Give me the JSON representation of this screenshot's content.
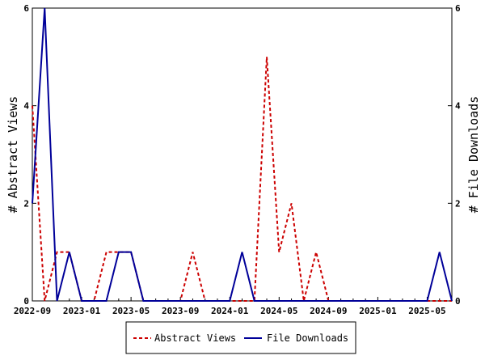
{
  "chart_data": {
    "type": "line",
    "x": [
      "2022-09",
      "2022-10",
      "2022-11",
      "2022-12",
      "2023-01",
      "2023-02",
      "2023-03",
      "2023-04",
      "2023-05",
      "2023-06",
      "2023-07",
      "2023-08",
      "2023-09",
      "2023-10",
      "2023-11",
      "2023-12",
      "2024-01",
      "2024-02",
      "2024-03",
      "2024-04",
      "2024-05",
      "2024-06",
      "2024-07",
      "2024-08",
      "2024-09",
      "2024-10",
      "2024-11",
      "2024-12",
      "2025-01",
      "2025-02",
      "2025-03",
      "2025-04",
      "2025-05",
      "2025-06",
      "2025-07"
    ],
    "x_tick_labels": [
      "2022-09",
      "2023-01",
      "2023-05",
      "2023-09",
      "2024-01",
      "2024-05",
      "2024-09",
      "2025-01",
      "2025-05"
    ],
    "series": [
      {
        "name": "Abstract Views",
        "axis": "left",
        "color": "#cc0000",
        "style": "dashed",
        "values": [
          4,
          0,
          1,
          1,
          0,
          0,
          1,
          1,
          1,
          0,
          0,
          0,
          0,
          1,
          0,
          0,
          0,
          0,
          0,
          5,
          1,
          2,
          0,
          1,
          0,
          0,
          0,
          0,
          0,
          0,
          0,
          0,
          0,
          0,
          0
        ]
      },
      {
        "name": "File Downloads",
        "axis": "right",
        "color": "#000099",
        "style": "solid",
        "values": [
          2,
          6,
          0,
          1,
          0,
          0,
          0,
          1,
          1,
          0,
          0,
          0,
          0,
          0,
          0,
          0,
          0,
          1,
          0,
          0,
          0,
          0,
          0,
          0,
          0,
          0,
          0,
          0,
          0,
          0,
          0,
          0,
          0,
          1,
          0
        ]
      }
    ],
    "ylabel_left": "# Abstract Views",
    "ylabel_right": "# File Downloads",
    "ylim_left": [
      0,
      6
    ],
    "ylim_right": [
      0,
      6
    ],
    "y_ticks": [
      0,
      2,
      4,
      6
    ],
    "grid": false,
    "legend_position": "bottom"
  }
}
